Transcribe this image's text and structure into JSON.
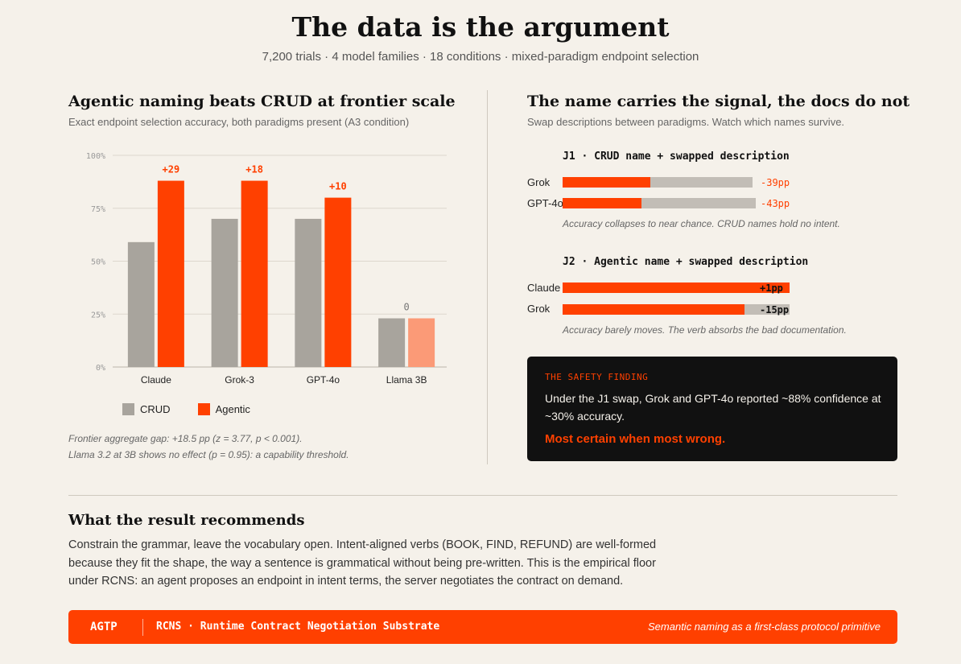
{
  "header": {
    "title": "The data is the argument",
    "subtitle": "7,200 trials · 4 model families · 18 conditions · mixed-paradigm endpoint selection"
  },
  "left_panel": {
    "title": "Agentic naming beats CRUD at frontier scale",
    "subtitle": "Exact endpoint selection accuracy, both paradigms present (A3 condition)",
    "legend": [
      "CRUD",
      "Agentic"
    ],
    "footnote_1": "Frontier aggregate gap: +18.5 pp (z = 3.77, p < 0.001).",
    "footnote_2": "Llama 3.2 at 3B shows no effect (p = 0.95): a capability threshold."
  },
  "chart_data": {
    "type": "bar",
    "categories": [
      "Claude",
      "Grok-3",
      "GPT-4o",
      "Llama 3B"
    ],
    "series": [
      {
        "name": "CRUD",
        "values": [
          59,
          70,
          70,
          23
        ],
        "color": "#a8a49d"
      },
      {
        "name": "Agentic",
        "values": [
          88,
          88,
          80,
          23
        ],
        "color": "#ff4000"
      }
    ],
    "highlight_faded_color": "#fb9a77",
    "gap_labels": [
      "+29",
      "+18",
      "+10",
      "0"
    ],
    "ylim": [
      0,
      100
    ],
    "yticks": [
      "0%",
      "25%",
      "50%",
      "75%",
      "100%"
    ],
    "ytick_values": [
      0,
      25,
      50,
      75,
      100
    ],
    "grid": true,
    "legend_position": "bottom-left"
  },
  "right_panel": {
    "title": "The name carries the signal, the docs do not",
    "subtitle": "Swap descriptions between paradigms. Watch which names survive.",
    "j1": {
      "heading": "J1 · CRUD name + swapped description",
      "rows": [
        {
          "label": "Grok",
          "fill": 0.46,
          "delta": "-39pp"
        },
        {
          "label": "GPT-4o",
          "fill": 0.41,
          "delta": "-43pp"
        }
      ],
      "note": "Accuracy collapses to near chance. CRUD names hold no intent."
    },
    "j2": {
      "heading": "J2 · Agentic name + swapped description",
      "rows": [
        {
          "label": "Claude",
          "fill": 1.0,
          "delta": "+1pp"
        },
        {
          "label": "Grok",
          "fill": 0.8,
          "delta": "-15pp"
        }
      ],
      "note": "Accuracy barely moves. The verb absorbs the bad documentation."
    },
    "finding": {
      "label": "THE SAFETY FINDING",
      "text": "Under the J1 swap, Grok and GPT-4o reported ~88% confidence at ~30% accuracy.",
      "emphasis": "Most certain when most wrong."
    }
  },
  "recommendation": {
    "title": "What the result recommends",
    "body": "Constrain the grammar, leave the vocabulary open. Intent-aligned verbs (BOOK, FIND, REFUND) are well-formed because they fit the shape, the way a sentence is grammatical without being pre-written. This is the empirical floor under RCNS: an agent proposes an endpoint in intent terms, the server negotiates the contract on demand."
  },
  "footer": {
    "brand": "AGTP",
    "product": "RCNS · Runtime Contract Negotiation Substrate",
    "tagline": "Semantic naming as a first-class protocol primitive"
  },
  "colors": {
    "accent": "#ff4000",
    "crud": "#a8a49d",
    "background": "#f5f1ea",
    "track": "#c2bdb6"
  }
}
